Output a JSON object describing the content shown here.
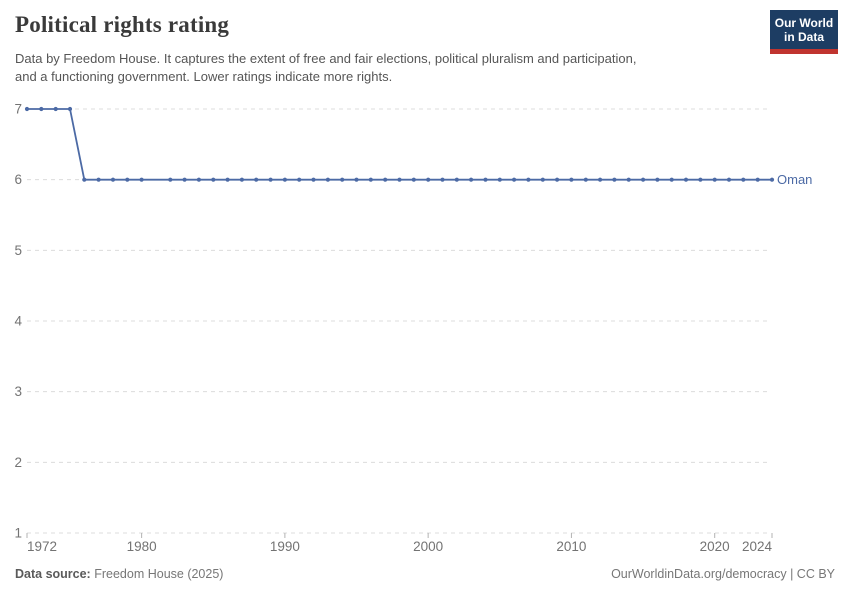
{
  "logo": {
    "line1": "Our World",
    "line2": "in Data"
  },
  "colors": {
    "line": "#4c6aa5",
    "grid": "#dcdcdc",
    "axis_text": "#737373",
    "tick_mark": "#b3b3b3",
    "logo_bg": "#1d3d63",
    "logo_bar": "#c0342f"
  },
  "chart_data": {
    "type": "line",
    "title": "Political rights rating",
    "subtitle_lines": [
      "Data by Freedom House. It captures the extent of free and fair elections, political pluralism and participation,",
      "and a functioning government. Lower ratings indicate more rights."
    ],
    "xlabel": "",
    "ylabel": "",
    "xlim": [
      1972,
      2024
    ],
    "ylim": [
      1,
      7
    ],
    "x_ticks": [
      1972,
      1980,
      1990,
      2000,
      2010,
      2020,
      2024
    ],
    "y_ticks": [
      1,
      2,
      3,
      4,
      5,
      6,
      7
    ],
    "grid": "horizontal-dashed",
    "legend_position": "end-of-line-label",
    "note": "No data point for 1981; line drawn continuously between 1980 and 1982",
    "series": [
      {
        "name": "Oman",
        "color": "#4c6aa5",
        "points": [
          [
            1972,
            7
          ],
          [
            1973,
            7
          ],
          [
            1974,
            7
          ],
          [
            1975,
            7
          ],
          [
            1976,
            6
          ],
          [
            1977,
            6
          ],
          [
            1978,
            6
          ],
          [
            1979,
            6
          ],
          [
            1980,
            6
          ],
          [
            1982,
            6
          ],
          [
            1983,
            6
          ],
          [
            1984,
            6
          ],
          [
            1985,
            6
          ],
          [
            1986,
            6
          ],
          [
            1987,
            6
          ],
          [
            1988,
            6
          ],
          [
            1989,
            6
          ],
          [
            1990,
            6
          ],
          [
            1991,
            6
          ],
          [
            1992,
            6
          ],
          [
            1993,
            6
          ],
          [
            1994,
            6
          ],
          [
            1995,
            6
          ],
          [
            1996,
            6
          ],
          [
            1997,
            6
          ],
          [
            1998,
            6
          ],
          [
            1999,
            6
          ],
          [
            2000,
            6
          ],
          [
            2001,
            6
          ],
          [
            2002,
            6
          ],
          [
            2003,
            6
          ],
          [
            2004,
            6
          ],
          [
            2005,
            6
          ],
          [
            2006,
            6
          ],
          [
            2007,
            6
          ],
          [
            2008,
            6
          ],
          [
            2009,
            6
          ],
          [
            2010,
            6
          ],
          [
            2011,
            6
          ],
          [
            2012,
            6
          ],
          [
            2013,
            6
          ],
          [
            2014,
            6
          ],
          [
            2015,
            6
          ],
          [
            2016,
            6
          ],
          [
            2017,
            6
          ],
          [
            2018,
            6
          ],
          [
            2019,
            6
          ],
          [
            2020,
            6
          ],
          [
            2021,
            6
          ],
          [
            2022,
            6
          ],
          [
            2023,
            6
          ],
          [
            2024,
            6
          ]
        ]
      }
    ]
  },
  "footer": {
    "source_label": "Data source:",
    "source_value": "Freedom House (2025)",
    "credit": "OurWorldinData.org/democracy | CC BY"
  }
}
